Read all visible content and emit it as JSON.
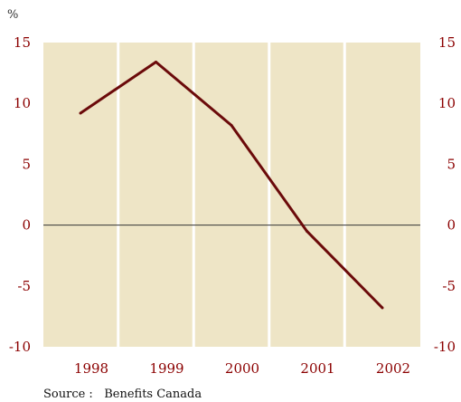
{
  "chart_data": {
    "type": "line",
    "title": "",
    "unit_label": "%",
    "x": [
      "1998",
      "1999",
      "2000",
      "2001",
      "2002"
    ],
    "series": [
      {
        "values": [
          9.2,
          13.4,
          8.2,
          -0.5,
          -6.8
        ]
      }
    ],
    "ylim": [
      -10,
      15
    ],
    "y_ticks": [
      "15",
      "10",
      "5",
      "0",
      "-5",
      "-10"
    ],
    "y_axes": "left and right",
    "grid": "vertical white lines",
    "zero_line": true,
    "legend": "none"
  },
  "colors": {
    "plot_background": "#eee5c6",
    "line": "#6b0a0a",
    "tick_text": "#8b0000",
    "grid": "#ffffff",
    "zero_line": "#333333"
  },
  "source": {
    "label": "Source :",
    "text": "Benefits Canada"
  }
}
